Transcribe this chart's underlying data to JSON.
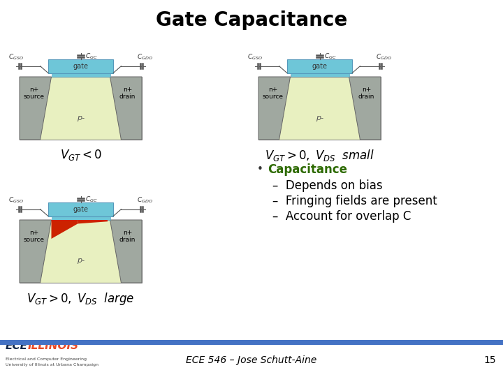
{
  "title": "Gate Capacitance",
  "title_fontsize": 20,
  "title_color": "#000000",
  "title_fontweight": "bold",
  "background_color": "#ffffff",
  "bullet_color": "#000000",
  "heading_color": "#2d6a00",
  "heading_text": "Capacitance",
  "heading_fontsize": 12,
  "bullet_items": [
    "Depends on bias",
    "Fringing fields are present",
    "Account for overlap C"
  ],
  "bullet_fontsize": 12,
  "footer_text": "ECE 546 – Jose Schutt-Aine",
  "footer_number": "15",
  "footer_color": "#000000",
  "footer_fontsize": 10,
  "bar_color": "#4472c4",
  "logo_color_ece": "#13294b",
  "logo_color_illinois": "#e84a27",
  "diagram1_label": "$V_{GT} < 0$",
  "diagram2_label": "$V_{GT} > 0, \\; V_{DS}$  small",
  "diagram3_label": "$V_{GT} > 0, \\; V_{DS}$  large",
  "diagram_label_fontsize": 12,
  "gate_color": "#6ec6d8",
  "substrate_color": "#e8f0c0",
  "nplus_color": "#a0a8a0",
  "channel_red": "#cc2200",
  "cap_line_color": "#555555",
  "wire_color": "#555555"
}
